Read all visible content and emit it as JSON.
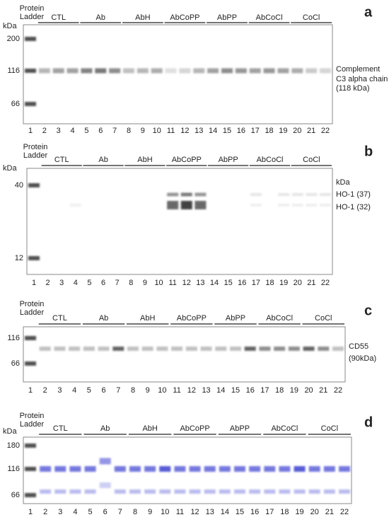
{
  "panels": [
    {
      "letter": "a",
      "ladder_label": [
        "Protein",
        "Ladder"
      ],
      "unit": "kDa",
      "groups": [
        "CTL",
        "Ab",
        "AbH",
        "AbCoPP",
        "AbPP",
        "AbCoCl",
        "CoCl"
      ],
      "markers": [
        "200",
        "116",
        "66"
      ],
      "lanes": [
        "1",
        "2",
        "3",
        "4",
        "5",
        "6",
        "7",
        "8",
        "9",
        "10",
        "11",
        "12",
        "13",
        "14",
        "15",
        "16",
        "17",
        "18",
        "19",
        "20",
        "21",
        "22"
      ],
      "annotations": [
        "Complement",
        "C3 alpha chain",
        "(118 kDa)"
      ]
    },
    {
      "letter": "b",
      "ladder_label": [
        "Protein",
        "Ladder"
      ],
      "unit": "kDa",
      "groups": [
        "CTL",
        "Ab",
        "AbH",
        "AbCoPP",
        "AbPP",
        "AbCoCl",
        "CoCl"
      ],
      "markers": [
        "40",
        "12"
      ],
      "lanes": [
        "1",
        "2",
        "3",
        "4",
        "5",
        "6",
        "7",
        "8",
        "9",
        "10",
        "11",
        "12",
        "13",
        "14",
        "15",
        "16",
        "17",
        "18",
        "19",
        "20",
        "21",
        "22"
      ],
      "annotations": [
        "kDa",
        "HO-1 (37)",
        "HO-1 (32)"
      ]
    },
    {
      "letter": "c",
      "ladder_label": [
        "Protein",
        "Ladder"
      ],
      "groups": [
        "CTL",
        "Ab",
        "AbH",
        "AbCoPP",
        "AbPP",
        "AbCoCl",
        "CoCl"
      ],
      "markers": [
        "116",
        "66"
      ],
      "lanes": [
        "1",
        "2",
        "3",
        "4",
        "5",
        "6",
        "7",
        "8",
        "9",
        "10",
        "11",
        "12",
        "13",
        "14",
        "15",
        "16",
        "17",
        "18",
        "19",
        "20",
        "21",
        "22"
      ],
      "annotations": [
        "CD55",
        "(90kDa)"
      ]
    },
    {
      "letter": "d",
      "ladder_label": [
        "Protein",
        "Ladder"
      ],
      "unit": "kDa",
      "groups": [
        "CTL",
        "Ab",
        "AbH",
        "AbCoPP",
        "AbPP",
        "AbCoCl",
        "CoCl"
      ],
      "markers": [
        "180",
        "116",
        "66"
      ],
      "lanes": [
        "1",
        "2",
        "3",
        "4",
        "5",
        "6",
        "7",
        "8",
        "9",
        "10",
        "11",
        "12",
        "13",
        "14",
        "15",
        "16",
        "17",
        "18",
        "19",
        "20",
        "21",
        "22"
      ]
    }
  ]
}
